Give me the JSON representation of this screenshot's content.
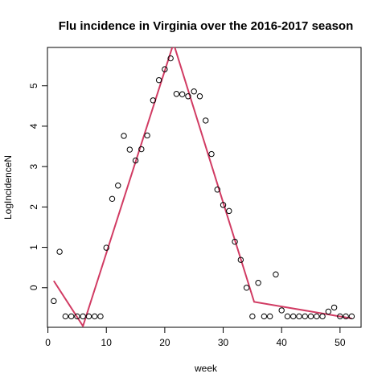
{
  "chart_data": {
    "type": "scatter",
    "title": "Flu incidence in Virginia over the 2016-2017 season",
    "xlabel": "week",
    "ylabel": "LogIncidenceN",
    "xlim": [
      -0.08,
      53.6
    ],
    "ylim": [
      -0.98,
      5.95
    ],
    "x_ticks": [
      0,
      10,
      20,
      30,
      40,
      50
    ],
    "y_ticks": [
      0,
      1,
      2,
      3,
      4,
      5
    ],
    "grid": false,
    "legend": "none",
    "series": [
      {
        "kind": "points",
        "marker": "open-circle",
        "color": "#000000",
        "x": [
          1,
          2,
          3,
          4,
          5,
          6,
          7,
          8,
          9,
          10,
          11,
          12,
          13,
          14,
          15,
          16,
          17,
          18,
          19,
          20,
          21,
          22,
          23,
          24,
          25,
          26,
          27,
          28,
          29,
          30,
          31,
          32,
          33,
          34,
          35,
          36,
          37,
          38,
          39,
          40,
          41,
          42,
          43,
          44,
          45,
          46,
          47,
          48,
          49,
          50,
          51,
          52
        ],
        "y": [
          -0.33,
          0.89,
          -0.71,
          -0.71,
          -0.71,
          -0.71,
          -0.71,
          -0.71,
          -0.71,
          0.99,
          2.2,
          2.53,
          3.76,
          3.42,
          3.15,
          3.43,
          3.77,
          4.64,
          5.14,
          5.41,
          5.68,
          4.8,
          4.79,
          4.74,
          4.86,
          4.74,
          4.14,
          3.31,
          2.43,
          2.05,
          1.9,
          1.14,
          0.69,
          0.0,
          -0.71,
          0.12,
          -0.71,
          -0.71,
          0.33,
          -0.56,
          -0.71,
          -0.71,
          -0.71,
          -0.71,
          -0.71,
          -0.71,
          -0.71,
          -0.59,
          -0.49,
          -0.71,
          -0.71,
          -0.71
        ]
      },
      {
        "kind": "line",
        "color": "#D13B63",
        "x": [
          1,
          6,
          21.5,
          35.3,
          52
        ],
        "y": [
          0.17,
          -0.95,
          6.05,
          -0.35,
          -0.76
        ]
      }
    ]
  }
}
